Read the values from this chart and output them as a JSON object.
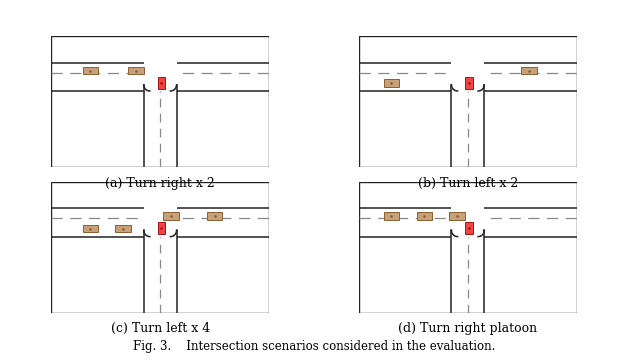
{
  "title": "Fig. 3.    Intersection scenarios considered in the evaluation.",
  "subtitles": [
    "(a) Turn right x 2",
    "(b) Turn left x 2",
    "(c) Turn left x 4",
    "(d) Turn right platoon"
  ],
  "road_border_color": "#222222",
  "dashed_line_color": "#888888",
  "car_ego_color": "#ee4444",
  "car_ego_border": "#aa1111",
  "car_other_color": "#c8a07a",
  "car_other_border": "#8a6030",
  "bg_color": "#ffffff"
}
